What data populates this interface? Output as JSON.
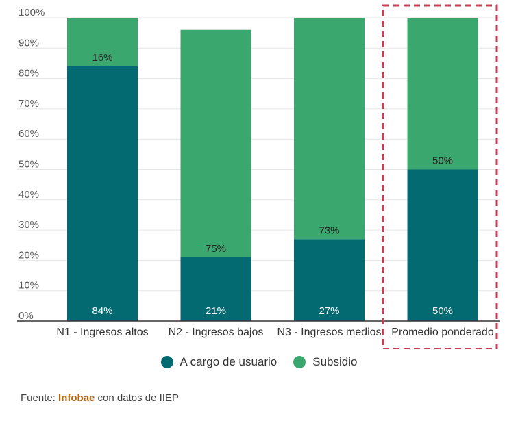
{
  "chart_data": {
    "type": "bar",
    "stacked": true,
    "categories": [
      "N1 - Ingresos altos",
      "N2 - Ingresos bajos",
      "N3 - Ingresos medios",
      "Promedio ponderado"
    ],
    "series": [
      {
        "name": "A cargo de usuario",
        "values": [
          84,
          21,
          27,
          50
        ],
        "labels": [
          "84%",
          "21%",
          "27%",
          "50%"
        ],
        "color": "#046a72"
      },
      {
        "name": "Subsidio",
        "values": [
          16,
          75,
          73,
          50
        ],
        "labels": [
          "16%",
          "75%",
          "73%",
          "50%"
        ],
        "color": "#3aa86e"
      }
    ],
    "yticks": [
      "0%",
      "10%",
      "20%",
      "30%",
      "40%",
      "50%",
      "60%",
      "70%",
      "80%",
      "90%",
      "100%"
    ],
    "ylim": [
      0,
      100
    ],
    "title": "",
    "xlabel": "",
    "ylabel": "",
    "grid": true,
    "legend": "bottom-center",
    "highlight_category_index": 3,
    "highlight_color": "#c83e55"
  },
  "source": {
    "prefix": "Fuente: ",
    "brand": "Infobae",
    "suffix": " con datos de IIEP"
  }
}
